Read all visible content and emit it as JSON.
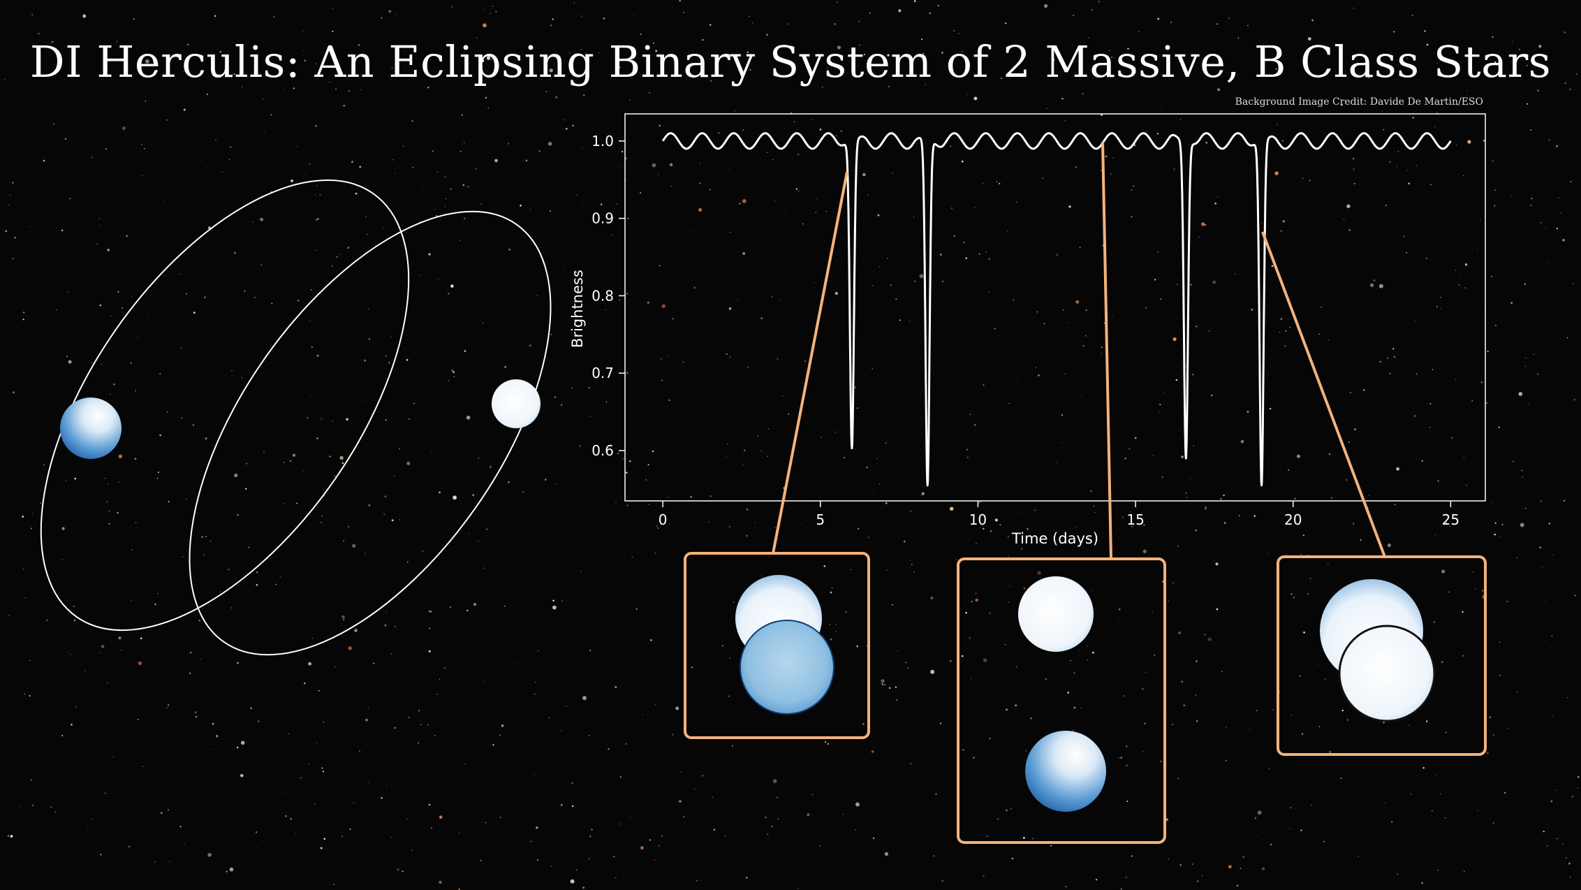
{
  "title": "DI Herculis: An Eclipsing Binary System of 2 Massive, B Class Stars",
  "credit": "Background Image Credit: Davide De Martin/ESO",
  "colors": {
    "background": "#060606",
    "curve": "#ffffff",
    "callout": "#f5b27a",
    "star_dark": "#1560b0",
    "star_light": "#f4f8fc"
  },
  "chart_data": {
    "type": "line",
    "title": "",
    "xlabel": "Time (days)",
    "ylabel": "Brightness",
    "xlim": [
      -1.2,
      26.1
    ],
    "ylim": [
      0.535,
      1.035
    ],
    "xticks": [
      0,
      5,
      10,
      15,
      20,
      25
    ],
    "yticks": [
      0.6,
      0.7,
      0.8,
      0.9,
      1.0
    ],
    "ytick_labels": [
      "0.6",
      "0.7",
      "0.8",
      "0.9",
      "1.0"
    ],
    "grid": false,
    "series": [
      {
        "name": "",
        "x_range": [
          0,
          25
        ],
        "baseline": 1.0,
        "ripple_amplitude": 0.01,
        "ripple_period_days": 1.0,
        "eclipses": [
          {
            "time": 6.0,
            "min_brightness": 0.603
          },
          {
            "time": 8.4,
            "min_brightness": 0.555
          },
          {
            "time": 16.6,
            "min_brightness": 0.59
          },
          {
            "time": 19.0,
            "min_brightness": 0.555
          }
        ]
      }
    ],
    "callouts": [
      {
        "name": "eclipse-phase",
        "time": 5.85,
        "brightness": 0.96
      },
      {
        "name": "separated-phase",
        "time": 14.0,
        "brightness": 1.0
      },
      {
        "name": "transit-phase",
        "time": 19.1,
        "brightness": 0.885
      }
    ]
  }
}
